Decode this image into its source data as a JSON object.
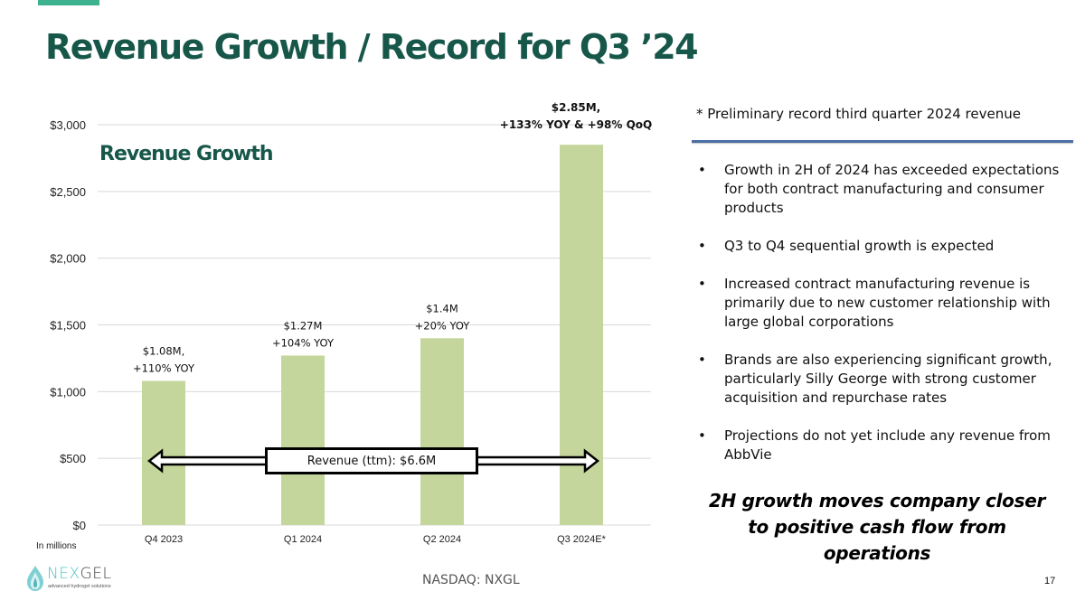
{
  "slide": {
    "title": "Revenue Growth / Record for Q3 ’24",
    "page_number": "17",
    "ticker": "NASDAQ: NXGL",
    "accent_color": "#3db28f",
    "title_color": "#17574a"
  },
  "logo": {
    "name_part1": "NEX",
    "name_part2": "GEL",
    "tagline": "advanced hydrogel solutions"
  },
  "chart_data": {
    "type": "bar",
    "title": "Revenue Growth",
    "xlabel": "",
    "ylabel": "",
    "units_note": "In millions",
    "categories": [
      "Q4 2023",
      "Q1 2024",
      "Q2 2024",
      "Q3 2024E*"
    ],
    "values": [
      1080,
      1270,
      1400,
      2850
    ],
    "data_labels": [
      [
        "$1.08M,",
        "+110% YOY"
      ],
      [
        "$1.27M",
        "+104% YOY"
      ],
      [
        "$1.4M",
        "+20% YOY"
      ],
      [
        "$2.85M,",
        "+133% YOY & +98% QoQ"
      ]
    ],
    "ylim": [
      0,
      3000
    ],
    "yticks": [
      0,
      500,
      1000,
      1500,
      2000,
      2500,
      3000
    ],
    "ytick_labels": [
      "$0",
      "$500",
      "$1,000",
      "$1,500",
      "$2,000",
      "$2,500",
      "$3,000"
    ],
    "grid": true,
    "bar_color": "#c4d69b",
    "annotation": "Revenue (ttm): $6.6M"
  },
  "sidebar": {
    "note": "* Preliminary record third quarter 2024 revenue",
    "bullet_char": "•",
    "bullets": [
      "Growth in 2H of 2024 has exceeded expectations for both contract manufacturing and consumer products",
      "Q3 to Q4 sequential growth is expected",
      "Increased contract manufacturing revenue is primarily due to new customer relationship with large global corporations",
      "Brands are also experiencing significant growth, particularly Silly George with strong customer acquisition and repurchase rates",
      "Projections do not yet include any revenue from AbbVie"
    ],
    "callout": "2H growth moves company closer to positive cash flow from operations"
  }
}
